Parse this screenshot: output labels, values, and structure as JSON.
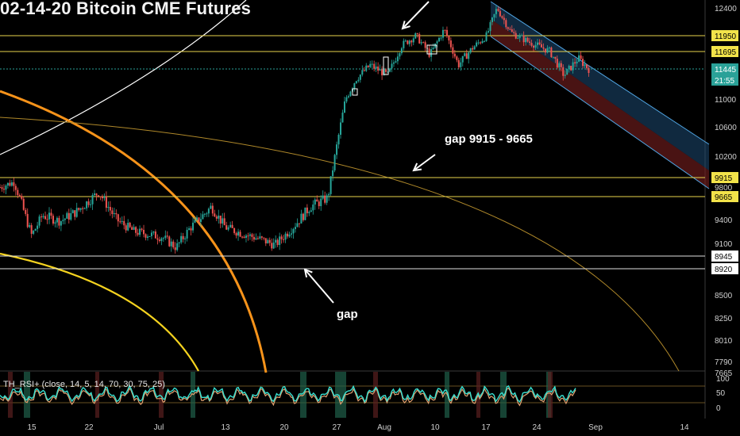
{
  "title": "02-14-20 Bitcoin CME Futures",
  "rsi_label": "TH_RSI+ (close, 14, 5, 14, 70, 30, 75, 25)",
  "annotations": {
    "gap_range": "gap 9915 - 9665",
    "gap": "gap"
  },
  "colors": {
    "background": "#000000",
    "up_candle": "#26a69a",
    "down_candle": "#ef5350",
    "level_line": "#e8d44d",
    "arc_orange": "#f7931a",
    "arc_yellow": "#f5d31f",
    "channel_upper": "#1e4a73",
    "channel_lower": "#7a1f1f",
    "rsi_line": "#38e0d0"
  },
  "chart_data": {
    "type": "candlestick",
    "title": "02-14-20 Bitcoin CME Futures",
    "y_ticks": [
      12400,
      11950,
      11695,
      11445,
      11000,
      10600,
      10200,
      9915,
      9800,
      9665,
      9400,
      9100,
      8945,
      8920,
      8500,
      8250,
      8010,
      7790,
      7665
    ],
    "price_labels": [
      {
        "text": "12400",
        "style": "plain"
      },
      {
        "text": "11950",
        "style": "yellow"
      },
      {
        "text": "11695",
        "style": "yellow"
      },
      {
        "text": "11445",
        "style": "teal"
      },
      {
        "text": "21:55",
        "style": "teal"
      },
      {
        "text": "11000",
        "style": "plain"
      },
      {
        "text": "10600",
        "style": "plain"
      },
      {
        "text": "10200",
        "style": "plain"
      },
      {
        "text": "9915",
        "style": "yellow"
      },
      {
        "text": "9800",
        "style": "plain"
      },
      {
        "text": "9665",
        "style": "yellow"
      },
      {
        "text": "9400",
        "style": "plain"
      },
      {
        "text": "9100",
        "style": "plain"
      },
      {
        "text": "8945",
        "style": "white"
      },
      {
        "text": "8920",
        "style": "white"
      },
      {
        "text": "8500",
        "style": "plain"
      },
      {
        "text": "8250",
        "style": "plain"
      },
      {
        "text": "8010",
        "style": "plain"
      },
      {
        "text": "7790",
        "style": "plain"
      },
      {
        "text": "7665",
        "style": "plain"
      }
    ],
    "x_ticks": [
      "15",
      "22",
      "Jul",
      "13",
      "20",
      "27",
      "Aug",
      "10",
      "17",
      "24",
      "Sep",
      "14"
    ],
    "horizontal_levels": [
      {
        "price": 11950,
        "color": "yellow"
      },
      {
        "price": 11695,
        "color": "yellow"
      },
      {
        "price": 11445,
        "color": "teal"
      },
      {
        "price": 9915,
        "color": "yellow"
      },
      {
        "price": 9665,
        "color": "yellow"
      },
      {
        "price": 8945,
        "color": "white"
      },
      {
        "price": 8920,
        "color": "white"
      }
    ],
    "price_path": [
      {
        "t": 0,
        "p": 9780
      },
      {
        "t": 0.02,
        "p": 9850
      },
      {
        "t": 0.03,
        "p": 9600
      },
      {
        "t": 0.045,
        "p": 9200
      },
      {
        "t": 0.06,
        "p": 9450
      },
      {
        "t": 0.085,
        "p": 9380
      },
      {
        "t": 0.11,
        "p": 9500
      },
      {
        "t": 0.14,
        "p": 9720
      },
      {
        "t": 0.165,
        "p": 9400
      },
      {
        "t": 0.19,
        "p": 9250
      },
      {
        "t": 0.23,
        "p": 9180
      },
      {
        "t": 0.25,
        "p": 9050
      },
      {
        "t": 0.27,
        "p": 9300
      },
      {
        "t": 0.3,
        "p": 9550
      },
      {
        "t": 0.32,
        "p": 9300
      },
      {
        "t": 0.345,
        "p": 9220
      },
      {
        "t": 0.37,
        "p": 9150
      },
      {
        "t": 0.39,
        "p": 9080
      },
      {
        "t": 0.415,
        "p": 9300
      },
      {
        "t": 0.44,
        "p": 9550
      },
      {
        "t": 0.465,
        "p": 9650
      },
      {
        "t": 0.475,
        "p": 10200
      },
      {
        "t": 0.49,
        "p": 11000
      },
      {
        "t": 0.505,
        "p": 11300
      },
      {
        "t": 0.525,
        "p": 11500
      },
      {
        "t": 0.55,
        "p": 11350
      },
      {
        "t": 0.57,
        "p": 11800
      },
      {
        "t": 0.59,
        "p": 11950
      },
      {
        "t": 0.61,
        "p": 11650
      },
      {
        "t": 0.63,
        "p": 12050
      },
      {
        "t": 0.65,
        "p": 11500
      },
      {
        "t": 0.67,
        "p": 11750
      },
      {
        "t": 0.69,
        "p": 11950
      },
      {
        "t": 0.705,
        "p": 12400
      },
      {
        "t": 0.725,
        "p": 12000
      },
      {
        "t": 0.75,
        "p": 11850
      },
      {
        "t": 0.78,
        "p": 11700
      },
      {
        "t": 0.8,
        "p": 11350
      },
      {
        "t": 0.82,
        "p": 11600
      },
      {
        "t": 0.835,
        "p": 11445
      }
    ]
  }
}
